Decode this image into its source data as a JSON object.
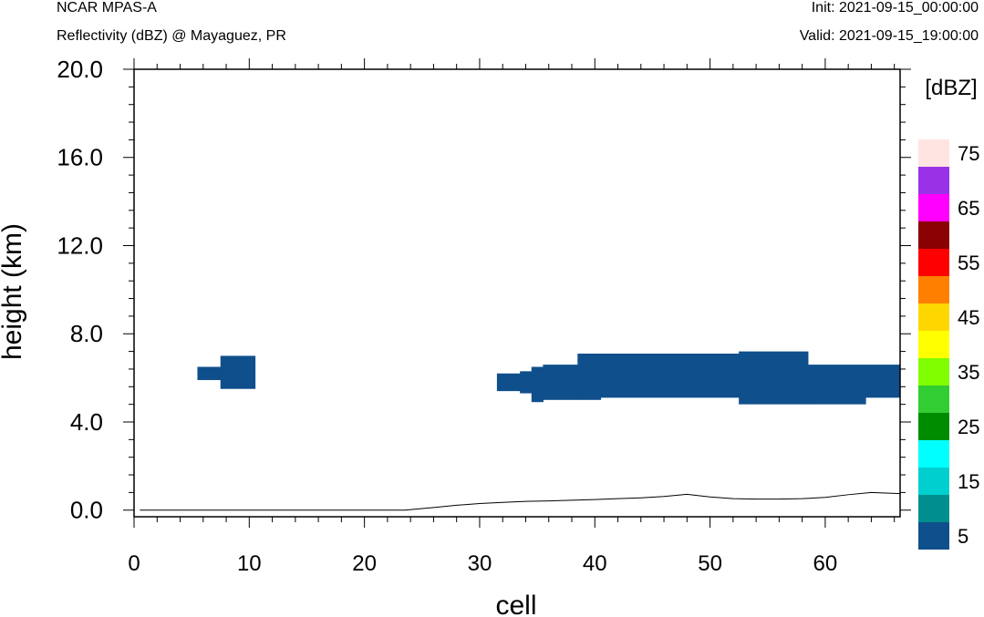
{
  "header": {
    "model": "NCAR MPAS-A",
    "field": "Reflectivity (dBZ) @ Mayaguez, PR",
    "init": "Init: 2021-09-15_00:00:00",
    "valid": "Valid: 2021-09-15_19:00:00"
  },
  "chart_data": {
    "type": "heatmap",
    "xlabel": "cell",
    "ylabel": "height (km)",
    "xlim": [
      0,
      66.5
    ],
    "ylim": [
      -0.3,
      20.0
    ],
    "xticks": [
      0,
      10,
      20,
      30,
      40,
      50,
      60
    ],
    "xtick_labels": [
      "0",
      "10",
      "20",
      "30",
      "40",
      "50",
      "60"
    ],
    "yticks": [
      0,
      4,
      8,
      12,
      16,
      20
    ],
    "ytick_labels": [
      "0.0",
      "4.0",
      "8.0",
      "12.0",
      "16.0",
      "20.0"
    ],
    "units_label": "[dBZ]",
    "colorbar": {
      "colors": [
        "#0f4f8c",
        "#018e8e",
        "#00cfcf",
        "#00ffff",
        "#008c00",
        "#32cd32",
        "#80ff00",
        "#ffff00",
        "#ffd700",
        "#ff8000",
        "#ff0000",
        "#8b0000",
        "#ff00ff",
        "#9932e6",
        "#ffe4e1"
      ],
      "tick_labels": [
        "5",
        "15",
        "25",
        "35",
        "45",
        "55",
        "65",
        "75"
      ]
    },
    "reflectivity_regions": [
      {
        "dbz_bin": "5",
        "x0": 5.5,
        "x1": 7.5,
        "y0": 5.9,
        "y1": 6.5
      },
      {
        "dbz_bin": "5",
        "x0": 7.5,
        "x1": 10.5,
        "y0": 5.5,
        "y1": 7.0
      },
      {
        "dbz_bin": "5",
        "x0": 31.5,
        "x1": 33.5,
        "y0": 5.4,
        "y1": 6.2
      },
      {
        "dbz_bin": "5",
        "x0": 33.5,
        "x1": 34.5,
        "y0": 5.3,
        "y1": 6.3
      },
      {
        "dbz_bin": "5",
        "x0": 34.5,
        "x1": 35.5,
        "y0": 4.9,
        "y1": 6.5
      },
      {
        "dbz_bin": "5",
        "x0": 35.5,
        "x1": 38.5,
        "y0": 5.0,
        "y1": 6.6
      },
      {
        "dbz_bin": "5",
        "x0": 38.5,
        "x1": 40.5,
        "y0": 5.0,
        "y1": 7.1
      },
      {
        "dbz_bin": "5",
        "x0": 40.5,
        "x1": 48.5,
        "y0": 5.1,
        "y1": 7.1
      },
      {
        "dbz_bin": "5",
        "x0": 48.5,
        "x1": 52.5,
        "y0": 5.1,
        "y1": 7.1
      },
      {
        "dbz_bin": "5",
        "x0": 52.5,
        "x1": 58.5,
        "y0": 4.8,
        "y1": 7.2
      },
      {
        "dbz_bin": "5",
        "x0": 58.5,
        "x1": 63.5,
        "y0": 4.8,
        "y1": 6.6
      },
      {
        "dbz_bin": "5",
        "x0": 63.5,
        "x1": 66.5,
        "y0": 5.1,
        "y1": 6.6
      }
    ],
    "terrain": {
      "x": [
        0.5,
        5,
        10,
        15,
        20,
        23.5,
        26,
        28,
        30,
        32,
        34,
        36,
        38,
        40,
        42,
        44,
        46,
        48,
        50,
        52,
        54,
        56,
        58,
        60,
        62,
        64,
        66.5
      ],
      "y": [
        0.0,
        0.0,
        0.0,
        0.0,
        0.0,
        0.0,
        0.12,
        0.22,
        0.3,
        0.35,
        0.4,
        0.42,
        0.45,
        0.48,
        0.52,
        0.56,
        0.62,
        0.72,
        0.6,
        0.52,
        0.5,
        0.5,
        0.52,
        0.58,
        0.7,
        0.8,
        0.75
      ]
    }
  }
}
